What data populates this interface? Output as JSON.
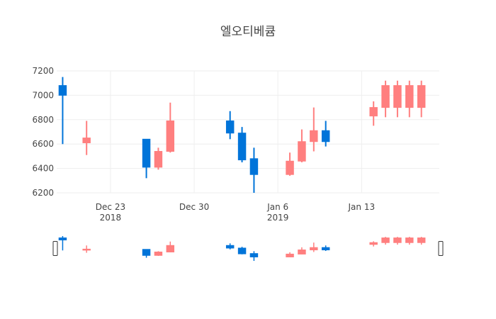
{
  "chart_data": {
    "type": "candlestick",
    "title": "엘오티베큠",
    "colors": {
      "increasing": "#ff7f7f",
      "decreasing": "#0074d9",
      "grid": "#eeeeee"
    },
    "ylim": [
      6200,
      7200
    ],
    "y_ticks": [
      6200,
      6400,
      6600,
      6800,
      7000,
      7200
    ],
    "x_ticks": [
      {
        "date": "2018-12-23",
        "label": "Dec 23",
        "sub": "2018"
      },
      {
        "date": "2018-12-30",
        "label": "Dec 30",
        "sub": ""
      },
      {
        "date": "2019-01-06",
        "label": "Jan 6",
        "sub": "2019"
      },
      {
        "date": "2019-01-13",
        "label": "Jan 13",
        "sub": ""
      }
    ],
    "x_range": [
      "2018-12-19",
      "2019-01-19"
    ],
    "candles": [
      {
        "date": "2018-12-19",
        "open": 7080,
        "high": 7150,
        "low": 6600,
        "close": 7000
      },
      {
        "date": "2018-12-21",
        "open": 6610,
        "high": 6790,
        "low": 6510,
        "close": 6650
      },
      {
        "date": "2018-12-26",
        "open": 6640,
        "high": 6640,
        "low": 6320,
        "close": 6410
      },
      {
        "date": "2018-12-27",
        "open": 6410,
        "high": 6570,
        "low": 6390,
        "close": 6540
      },
      {
        "date": "2018-12-28",
        "open": 6540,
        "high": 6940,
        "low": 6530,
        "close": 6790
      },
      {
        "date": "2019-01-02",
        "open": 6790,
        "high": 6870,
        "low": 6640,
        "close": 6690
      },
      {
        "date": "2019-01-03",
        "open": 6690,
        "high": 6740,
        "low": 6450,
        "close": 6470
      },
      {
        "date": "2019-01-04",
        "open": 6480,
        "high": 6570,
        "low": 6200,
        "close": 6350
      },
      {
        "date": "2019-01-07",
        "open": 6350,
        "high": 6530,
        "low": 6340,
        "close": 6460
      },
      {
        "date": "2019-01-08",
        "open": 6460,
        "high": 6720,
        "low": 6450,
        "close": 6620
      },
      {
        "date": "2019-01-09",
        "open": 6620,
        "high": 6900,
        "low": 6540,
        "close": 6710
      },
      {
        "date": "2019-01-10",
        "open": 6710,
        "high": 6790,
        "low": 6580,
        "close": 6620
      },
      {
        "date": "2019-01-14",
        "open": 6830,
        "high": 6950,
        "low": 6750,
        "close": 6900
      },
      {
        "date": "2019-01-15",
        "open": 6900,
        "high": 7120,
        "low": 6820,
        "close": 7080
      },
      {
        "date": "2019-01-16",
        "open": 6900,
        "high": 7120,
        "low": 6820,
        "close": 7080
      },
      {
        "date": "2019-01-17",
        "open": 6900,
        "high": 7120,
        "low": 6820,
        "close": 7080
      },
      {
        "date": "2019-01-18",
        "open": 6900,
        "high": 7120,
        "low": 6820,
        "close": 7080
      }
    ],
    "rangeslider": true
  }
}
